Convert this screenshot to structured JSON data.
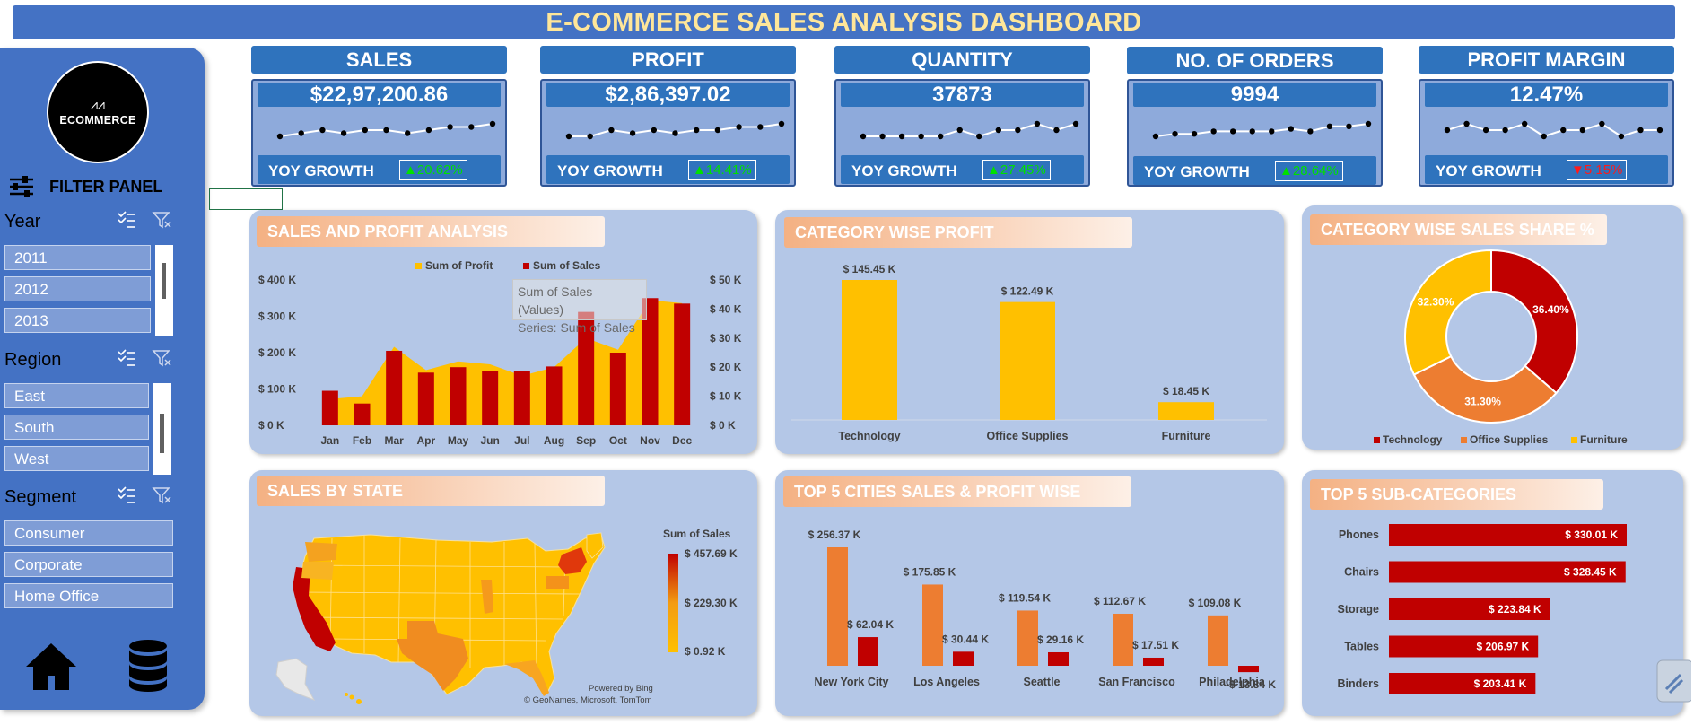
{
  "title": "E-COMMERCE SALES ANALYSIS DASHBOARD",
  "sidebar": {
    "logo_text": "ECOMMERCE",
    "filter_panel_label": "FILTER PANEL",
    "year": {
      "label": "Year",
      "options": [
        "2011",
        "2012",
        "2013"
      ]
    },
    "region": {
      "label": "Region",
      "options": [
        "East",
        "South",
        "West"
      ]
    },
    "segment": {
      "label": "Segment",
      "options": [
        "Consumer",
        "Corporate",
        "Home Office"
      ]
    }
  },
  "kpis": [
    {
      "label": "SALES",
      "value": "$22,97,200.86",
      "yoy_label": "YOY GROWTH",
      "yoy": "▲20.62%",
      "trend": "up",
      "spark": [
        4,
        5,
        6,
        5,
        6,
        6,
        5,
        6,
        7,
        7,
        8
      ]
    },
    {
      "label": "PROFIT",
      "value": "$2,86,397.02",
      "yoy_label": "YOY GROWTH",
      "yoy": "▲14.41%",
      "trend": "up",
      "spark": [
        4,
        4,
        6,
        5,
        6,
        5,
        6,
        6,
        7,
        7,
        8
      ]
    },
    {
      "label": "QUANTITY",
      "value": "37873",
      "yoy_label": "YOY GROWTH",
      "yoy": "▲27.45%",
      "trend": "up",
      "spark": [
        4,
        4,
        4,
        4,
        4,
        5,
        4,
        5,
        5,
        6,
        5,
        6
      ]
    },
    {
      "label": "NO. OF ORDERS",
      "value": "9994",
      "yoy_label": "YOY GROWTH",
      "yoy": "▲28.64%",
      "trend": "up",
      "spark": [
        3,
        4,
        4,
        5,
        5,
        5,
        5,
        6,
        5,
        7,
        7,
        8
      ]
    },
    {
      "label": "PROFIT MARGIN",
      "value": "12.47%",
      "yoy_label": "YOY GROWTH",
      "yoy": "▼5.15%",
      "trend": "down",
      "spark": [
        6,
        7,
        6,
        6,
        7,
        5,
        6,
        6,
        7,
        5,
        6,
        6
      ]
    }
  ],
  "panels": {
    "sales_profit": "SALES AND PROFIT ANALYSIS",
    "category_profit": "CATEGORY WISE PROFIT",
    "category_share": "CATEGORY WISE SALES SHARE %",
    "sales_state": "SALES BY STATE",
    "top_cities": "TOP 5 CITIES SALES & PROFIT WISE",
    "top_sub": "TOP 5 SUB-CATEGORIES"
  },
  "tooltip": {
    "line1": "Sum of Sales (Values)",
    "line2": "Series: Sum of Sales"
  },
  "map": {
    "legend_title": "Sum of Sales",
    "legend_values": [
      "$ 457.69 K",
      "$ 229.30 K",
      "$ 0.92 K"
    ],
    "powered_by": "Powered by Bing",
    "attribution": "© GeoNames, Microsoft, TomTom",
    "colors": {
      "low": "#ffc000",
      "mid": "#f39c12",
      "high": "#c00000"
    }
  },
  "chart_data": [
    {
      "type": "bar",
      "title": "SALES AND PROFIT ANALYSIS",
      "categories": [
        "Jan",
        "Feb",
        "Mar",
        "Apr",
        "May",
        "Jun",
        "Jul",
        "Aug",
        "Sep",
        "Oct",
        "Nov",
        "Dec"
      ],
      "series": [
        {
          "name": "Sum of Profit",
          "kind": "area",
          "axis": "right",
          "color": "#ffc000",
          "values": [
            9,
            10,
            27,
            19,
            22,
            21,
            17,
            20,
            30,
            26,
            43,
            42
          ]
        },
        {
          "name": "Sum of Sales",
          "kind": "bar",
          "axis": "left",
          "color": "#c00000",
          "values": [
            95,
            60,
            205,
            145,
            160,
            150,
            150,
            162,
            312,
            200,
            350,
            335
          ]
        }
      ],
      "left_axis": {
        "ticks": [
          "$ 0 K",
          "$ 100 K",
          "$ 200 K",
          "$ 300 K",
          "$ 400 K"
        ],
        "ylim": [
          0,
          400
        ]
      },
      "right_axis": {
        "ticks": [
          "$ 0 K",
          "$ 10 K",
          "$ 20 K",
          "$ 30 K",
          "$ 40 K",
          "$ 50 K"
        ],
        "ylim": [
          0,
          50
        ]
      },
      "legend": "top"
    },
    {
      "type": "bar",
      "title": "CATEGORY WISE PROFIT",
      "categories": [
        "Technology",
        "Office Supplies",
        "Furniture"
      ],
      "values": [
        145.45,
        122.49,
        18.45
      ],
      "labels": [
        "$ 145.45 K",
        "$ 122.49 K",
        "$ 18.45 K"
      ],
      "color": "#ffc000"
    },
    {
      "type": "pie",
      "title": "CATEGORY WISE SALES SHARE %",
      "categories": [
        "Technology",
        "Office Supplies",
        "Furniture"
      ],
      "values": [
        36.4,
        31.3,
        32.3
      ],
      "labels": [
        "36.40%",
        "31.30%",
        "32.30%"
      ],
      "colors": [
        "#c00000",
        "#ed7d31",
        "#ffc000"
      ],
      "legend": "bottom"
    },
    {
      "type": "bar",
      "title": "TOP 5 CITIES SALES & PROFIT WISE",
      "categories": [
        "New York City",
        "Los Angeles",
        "Seattle",
        "San Francisco",
        "Philadelphia"
      ],
      "series": [
        {
          "name": "Sales",
          "color": "#ed7d31",
          "values": [
            256.37,
            175.85,
            119.54,
            112.67,
            109.08
          ],
          "labels": [
            "$ 256.37 K",
            "$ 175.85 K",
            "$ 119.54 K",
            "$ 112.67 K",
            "$ 109.08 K"
          ]
        },
        {
          "name": "Profit",
          "color": "#c00000",
          "values": [
            62.04,
            30.44,
            29.16,
            17.51,
            -13.84
          ],
          "labels": [
            "$ 62.04 K",
            "$ 30.44 K",
            "$ 29.16 K",
            "$ 17.51 K",
            "-$ 13.84 K"
          ]
        }
      ]
    },
    {
      "type": "bar",
      "title": "TOP 5 SUB-CATEGORIES",
      "orientation": "horizontal",
      "categories": [
        "Phones",
        "Chairs",
        "Storage",
        "Tables",
        "Binders"
      ],
      "values": [
        330.01,
        328.45,
        223.84,
        206.97,
        203.41
      ],
      "labels": [
        "$ 330.01 K",
        "$ 328.45 K",
        "$ 223.84 K",
        "$ 206.97 K",
        "$ 203.41 K"
      ],
      "color": "#c00000"
    }
  ]
}
